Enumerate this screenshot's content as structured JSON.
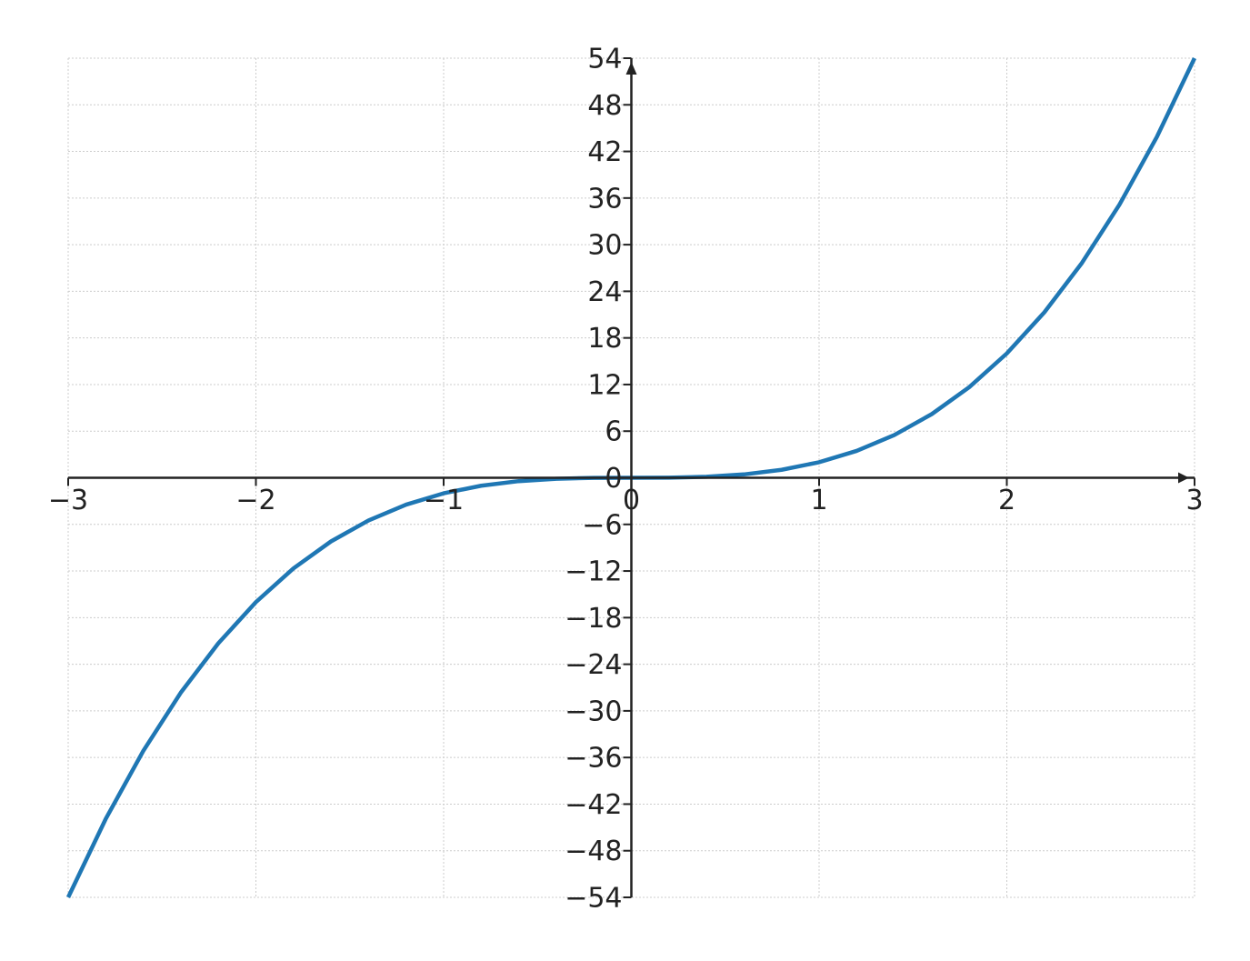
{
  "chart_data": {
    "type": "line",
    "x": [
      -3,
      -2.8,
      -2.6,
      -2.4,
      -2.2,
      -2,
      -1.8,
      -1.6,
      -1.4,
      -1.2,
      -1,
      -0.8,
      -0.6,
      -0.4,
      -0.2,
      0,
      0.2,
      0.4,
      0.6,
      0.8,
      1,
      1.2,
      1.4,
      1.6,
      1.8,
      2,
      2.2,
      2.4,
      2.6,
      2.8,
      3
    ],
    "series": [
      {
        "color": "#1f77b4",
        "values": [
          -54,
          -43.904,
          -35.152,
          -27.648,
          -21.296,
          -16,
          -11.664,
          -8.192,
          -5.488,
          -3.456,
          -2,
          -1.024,
          -0.432,
          -0.128,
          -0.016,
          0,
          0.016,
          0.128,
          0.432,
          1.024,
          2,
          3.456,
          5.488,
          8.192,
          11.664,
          16,
          21.296,
          27.648,
          35.152,
          43.904,
          54
        ]
      }
    ],
    "xlim": [
      -3,
      3
    ],
    "ylim": [
      -54,
      54
    ],
    "xticks": [
      {
        "value": -3,
        "label": "−3"
      },
      {
        "value": -2,
        "label": "−2"
      },
      {
        "value": -1,
        "label": "−1"
      },
      0,
      1,
      2,
      3
    ],
    "yticks": [
      {
        "value": -54,
        "label": "−54"
      },
      {
        "value": -48,
        "label": "−48"
      },
      {
        "value": -42,
        "label": "−42"
      },
      {
        "value": -36,
        "label": "−36"
      },
      {
        "value": -30,
        "label": "−30"
      },
      {
        "value": -24,
        "label": "−24"
      },
      {
        "value": -18,
        "label": "−18"
      },
      {
        "value": -12,
        "label": "−12"
      },
      {
        "value": -6,
        "label": "−6"
      },
      0,
      6,
      12,
      18,
      24,
      30,
      36,
      42,
      48,
      54
    ],
    "grid": true
  }
}
